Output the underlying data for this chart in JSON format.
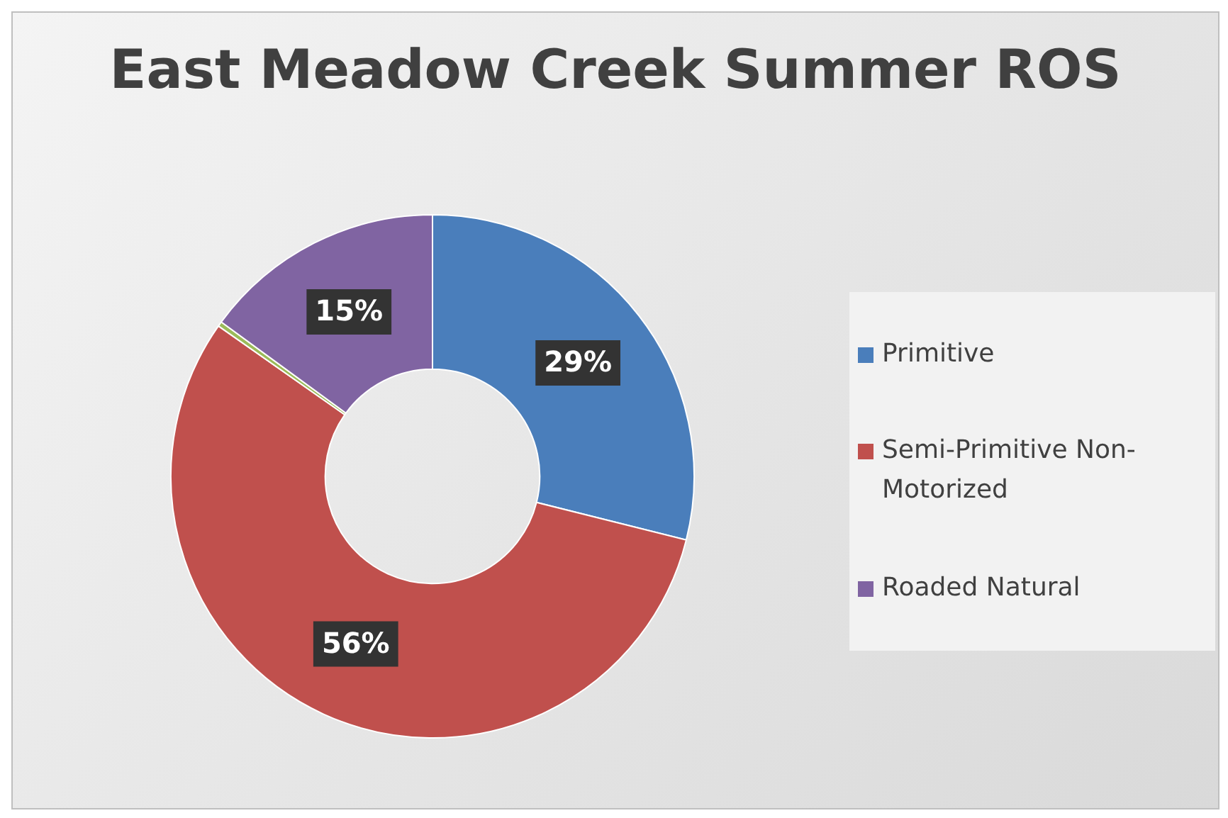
{
  "chart_data": {
    "type": "donut",
    "title": "East Meadow Creek Summer ROS",
    "categories": [
      "Primitive",
      "Semi-Primitive Non-Motorized",
      null,
      "Roaded Natural"
    ],
    "values": [
      29,
      56,
      0.3,
      15
    ],
    "colors": [
      "#4a7ebb",
      "#c0504d",
      "#9bbb59",
      "#8064a2"
    ],
    "value_labels": [
      "29%",
      "56%",
      null,
      "15%"
    ],
    "legend": "right"
  }
}
